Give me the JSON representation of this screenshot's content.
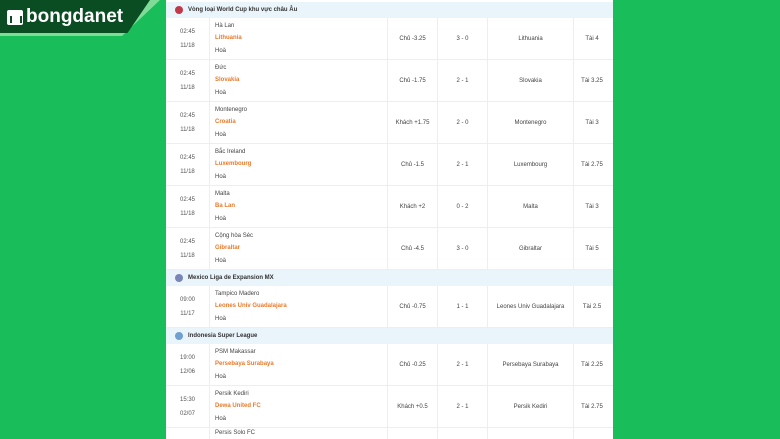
{
  "logo": "bongdanet",
  "colors": {
    "background": "#19bd5a",
    "away_team": "#ea7a2b",
    "league_header": "#eaf4fb"
  },
  "leagues": [
    {
      "name": "Vòng loại World Cup khu vực châu Âu",
      "icon_color": "#c0394b",
      "matches": [
        {
          "time": "02:45",
          "date": "11/18",
          "home": "Hà Lan",
          "away": "Lithuania",
          "draw": "Hoà",
          "handicap": "Chủ -3.25",
          "score": "3 - 0",
          "result": "Lithuania",
          "total": "Tài 4"
        },
        {
          "time": "02:45",
          "date": "11/18",
          "home": "Đức",
          "away": "Slovakia",
          "draw": "Hoà",
          "handicap": "Chủ -1.75",
          "score": "2 - 1",
          "result": "Slovakia",
          "total": "Tài 3.25"
        },
        {
          "time": "02:45",
          "date": "11/18",
          "home": "Montenegro",
          "away": "Croatia",
          "draw": "Hoà",
          "handicap": "Khách +1.75",
          "score": "2 - 0",
          "result": "Montenegro",
          "total": "Tài 3"
        },
        {
          "time": "02:45",
          "date": "11/18",
          "home": "Bắc Ireland",
          "away": "Luxembourg",
          "draw": "Hoà",
          "handicap": "Chủ -1.5",
          "score": "2 - 1",
          "result": "Luxembourg",
          "total": "Tài 2.75"
        },
        {
          "time": "02:45",
          "date": "11/18",
          "home": "Malta",
          "away": "Ba Lan",
          "draw": "Hoà",
          "handicap": "Khách +2",
          "score": "0 - 2",
          "result": "Malta",
          "total": "Tài 3"
        },
        {
          "time": "02:45",
          "date": "11/18",
          "home": "Cộng hòa Séc",
          "away": "Gibraltar",
          "draw": "Hoà",
          "handicap": "Chủ -4.5",
          "score": "3 - 0",
          "result": "Gibraltar",
          "total": "Tài 5"
        }
      ]
    },
    {
      "name": "Mexico Liga de Expansion MX",
      "icon_color": "#7a86b8",
      "matches": [
        {
          "time": "09:00",
          "date": "11/17",
          "home": "Tampico Madero",
          "away": "Leones Univ Guadalajara",
          "draw": "Hoà",
          "handicap": "Chủ -0.75",
          "score": "1 - 1",
          "result": "Leones Univ Guadalajara",
          "total": "Tài 2.5"
        }
      ]
    },
    {
      "name": "Indonesia Super League",
      "icon_color": "#6fa0d0",
      "matches": [
        {
          "time": "19:00",
          "date": "12/06",
          "home": "PSM Makassar",
          "away": "Persebaya Surabaya",
          "draw": "Hoà",
          "handicap": "Chủ -0.25",
          "score": "2 - 1",
          "result": "Persebaya Surabaya",
          "total": "Tài 2.25"
        },
        {
          "time": "15:30",
          "date": "02/07",
          "home": "Persik Kediri",
          "away": "Dewa United FC",
          "draw": "Hoà",
          "handicap": "Khách +0.5",
          "score": "2 - 1",
          "result": "Persik Kediri",
          "total": "Tài 2.75"
        },
        {
          "time": "",
          "date": "",
          "home": "Persis Solo FC",
          "away": "",
          "draw": "",
          "handicap": "",
          "score": "",
          "result": "",
          "total": ""
        }
      ]
    }
  ]
}
